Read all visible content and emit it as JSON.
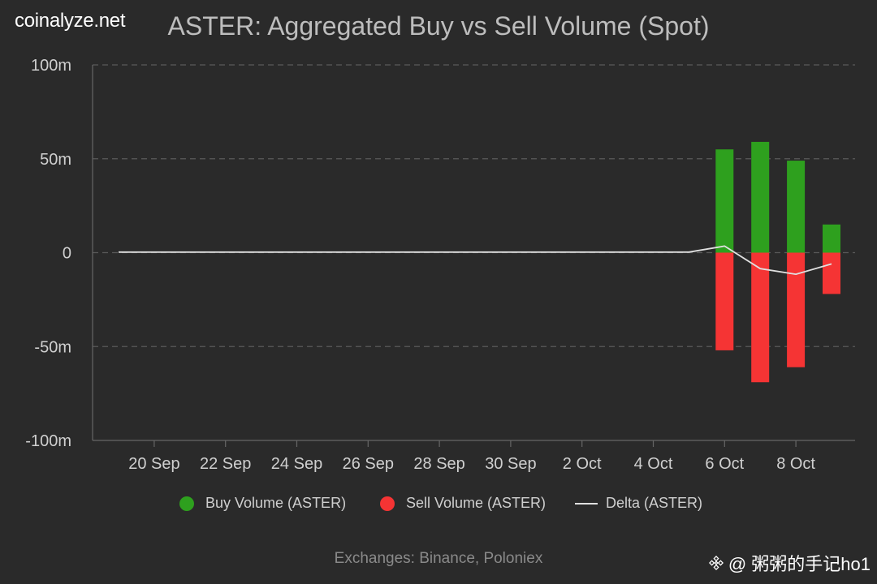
{
  "brand": "coinalyze.net",
  "footer": "Exchanges: Binance, Poloniex",
  "watermark": "@ 粥粥的手记ho1",
  "colors": {
    "background": "#2a2a2a",
    "buy": "#2ea01e",
    "sell": "#f53434",
    "delta": "#e0e0e0",
    "grid": "#5a5a5a",
    "text": "#cfcfcf",
    "title": "#bdbdbd"
  },
  "chart_data": {
    "type": "bar",
    "title": "ASTER: Aggregated Buy vs Sell Volume (Spot)",
    "xlabel": "",
    "ylabel": "",
    "ylim": [
      -100,
      100
    ],
    "y_unit": "m",
    "y_ticks": [
      {
        "value": 100,
        "label": "100m"
      },
      {
        "value": 50,
        "label": "50m"
      },
      {
        "value": 0,
        "label": "0"
      },
      {
        "value": -50,
        "label": "-50m"
      },
      {
        "value": -100,
        "label": "-100m"
      }
    ],
    "x_ticks": [
      "20 Sep",
      "22 Sep",
      "24 Sep",
      "26 Sep",
      "28 Sep",
      "30 Sep",
      "2 Oct",
      "4 Oct",
      "6 Oct",
      "8 Oct"
    ],
    "x_dates": [
      "2025-09-19",
      "2025-09-20",
      "2025-09-21",
      "2025-09-22",
      "2025-09-23",
      "2025-09-24",
      "2025-09-25",
      "2025-09-26",
      "2025-09-27",
      "2025-09-28",
      "2025-09-29",
      "2025-09-30",
      "2025-10-01",
      "2025-10-02",
      "2025-10-03",
      "2025-10-04",
      "2025-10-05",
      "2025-10-06",
      "2025-10-07",
      "2025-10-08",
      "2025-10-09"
    ],
    "grid": true,
    "legend_position": "bottom",
    "series": [
      {
        "name": "Buy Volume (ASTER)",
        "kind": "bar",
        "color": "#2ea01e",
        "values": [
          0,
          0,
          0,
          0,
          0,
          0,
          0,
          0,
          0,
          0,
          0,
          0,
          0,
          0,
          0,
          0,
          0,
          55,
          59,
          49,
          15
        ]
      },
      {
        "name": "Sell Volume (ASTER)",
        "kind": "bar",
        "color": "#f53434",
        "values": [
          0,
          0,
          0,
          0,
          0,
          0,
          0,
          0,
          0,
          0,
          0,
          0,
          0,
          0,
          0,
          0,
          0,
          -52,
          -69,
          -61,
          -22
        ]
      },
      {
        "name": "Delta (ASTER)",
        "kind": "line",
        "color": "#e0e0e0",
        "values": [
          0.3,
          0.3,
          0.3,
          0.3,
          0.3,
          0.3,
          0.3,
          0.3,
          0.3,
          0.3,
          0.3,
          0.3,
          0.3,
          0.3,
          0.3,
          0.3,
          0.3,
          3.5,
          -8.5,
          -11.5,
          -6
        ]
      }
    ]
  }
}
